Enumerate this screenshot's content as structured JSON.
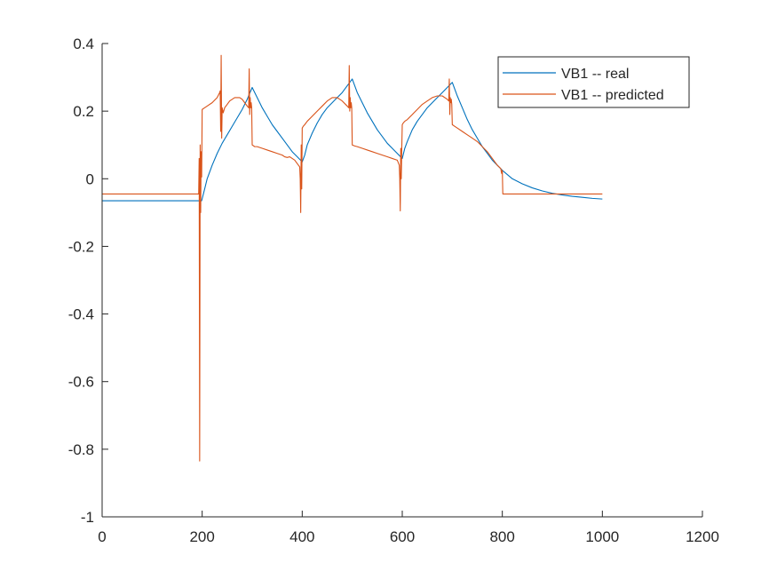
{
  "chart_data": {
    "type": "line",
    "title": "",
    "xlabel": "",
    "ylabel": "",
    "xlim": [
      0,
      1200
    ],
    "ylim": [
      -1,
      0.4
    ],
    "xticks": [
      0,
      200,
      400,
      600,
      800,
      1000,
      1200
    ],
    "yticks": [
      -1,
      -0.8,
      -0.6,
      -0.4,
      -0.2,
      0,
      0.2,
      0.4
    ],
    "xtick_labels": [
      "0",
      "200",
      "400",
      "600",
      "800",
      "1000",
      "1200"
    ],
    "ytick_labels": [
      "-1",
      "-0.8",
      "-0.6",
      "-0.4",
      "-0.2",
      "0",
      "0.2",
      "0.4"
    ],
    "grid": false,
    "legend_position": "top-right",
    "series": [
      {
        "name": "VB1 -- real",
        "color": "#0072BD",
        "x": [
          0,
          100,
          199,
          205,
          210,
          220,
          230,
          240,
          250,
          260,
          270,
          280,
          290,
          300,
          310,
          320,
          330,
          340,
          350,
          360,
          370,
          380,
          390,
          400,
          405,
          410,
          420,
          430,
          440,
          450,
          460,
          470,
          480,
          490,
          500,
          510,
          520,
          530,
          540,
          550,
          560,
          570,
          580,
          590,
          600,
          605,
          610,
          620,
          630,
          640,
          650,
          660,
          670,
          680,
          690,
          700,
          710,
          720,
          730,
          740,
          750,
          760,
          770,
          780,
          790,
          800,
          820,
          840,
          860,
          880,
          900,
          920,
          940,
          960,
          980,
          1000
        ],
        "y": [
          -0.065,
          -0.065,
          -0.065,
          -0.03,
          0.0,
          0.04,
          0.075,
          0.105,
          0.13,
          0.155,
          0.18,
          0.205,
          0.235,
          0.27,
          0.24,
          0.21,
          0.185,
          0.16,
          0.14,
          0.12,
          0.1,
          0.08,
          0.065,
          0.05,
          0.07,
          0.1,
          0.135,
          0.165,
          0.19,
          0.21,
          0.225,
          0.24,
          0.255,
          0.275,
          0.295,
          0.255,
          0.225,
          0.195,
          0.17,
          0.145,
          0.125,
          0.105,
          0.09,
          0.075,
          0.06,
          0.09,
          0.11,
          0.145,
          0.17,
          0.19,
          0.21,
          0.225,
          0.24,
          0.255,
          0.27,
          0.285,
          0.245,
          0.21,
          0.175,
          0.145,
          0.12,
          0.095,
          0.075,
          0.055,
          0.04,
          0.025,
          0.0,
          -0.015,
          -0.027,
          -0.036,
          -0.043,
          -0.048,
          -0.052,
          -0.055,
          -0.058,
          -0.06
        ]
      },
      {
        "name": "VB1 -- predicted",
        "color": "#D95319",
        "x": [
          0,
          100,
          193,
          194,
          195,
          196,
          197,
          198,
          199,
          200,
          205,
          210,
          220,
          230,
          235,
          236,
          237,
          238,
          239,
          240,
          242,
          245,
          250,
          255,
          260,
          265,
          270,
          275,
          280,
          285,
          290,
          293,
          294,
          295,
          296,
          297,
          298,
          299,
          300,
          305,
          310,
          320,
          330,
          340,
          350,
          360,
          365,
          370,
          375,
          380,
          385,
          390,
          395,
          396,
          397,
          398,
          399,
          400,
          402,
          405,
          410,
          420,
          430,
          440,
          450,
          460,
          470,
          480,
          490,
          493,
          494,
          495,
          496,
          497,
          498,
          499,
          500,
          505,
          510,
          520,
          530,
          540,
          550,
          560,
          570,
          580,
          590,
          594,
          595,
          596,
          597,
          598,
          599,
          600,
          602,
          605,
          610,
          620,
          630,
          640,
          650,
          660,
          670,
          680,
          690,
          693,
          694,
          695,
          696,
          697,
          698,
          699,
          700,
          705,
          710,
          720,
          730,
          740,
          750,
          760,
          770,
          780,
          790,
          797,
          798,
          799,
          800,
          801,
          805,
          820,
          850,
          900,
          950,
          1000
        ],
        "y": [
          -0.045,
          -0.045,
          -0.045,
          0.06,
          -0.835,
          0.1,
          -0.1,
          0.08,
          0.005,
          0.205,
          0.21,
          0.215,
          0.225,
          0.24,
          0.255,
          0.26,
          0.14,
          0.365,
          0.12,
          0.21,
          0.195,
          0.21,
          0.22,
          0.23,
          0.235,
          0.24,
          0.24,
          0.24,
          0.235,
          0.225,
          0.215,
          0.21,
          0.325,
          0.19,
          0.24,
          0.21,
          0.225,
          0.21,
          0.1,
          0.095,
          0.095,
          0.09,
          0.085,
          0.08,
          0.075,
          0.07,
          0.065,
          0.063,
          0.065,
          0.06,
          0.055,
          0.045,
          0.035,
          0.0,
          -0.1,
          0.1,
          -0.03,
          0.15,
          0.155,
          0.16,
          0.17,
          0.185,
          0.2,
          0.215,
          0.23,
          0.24,
          0.24,
          0.23,
          0.215,
          0.21,
          0.335,
          0.2,
          0.24,
          0.21,
          0.225,
          0.21,
          0.1,
          0.097,
          0.095,
          0.09,
          0.085,
          0.08,
          0.075,
          0.07,
          0.065,
          0.06,
          0.055,
          0.04,
          0.0,
          -0.095,
          0.09,
          0.0,
          0.09,
          0.16,
          0.165,
          0.17,
          0.175,
          0.19,
          0.205,
          0.22,
          0.23,
          0.24,
          0.245,
          0.245,
          0.235,
          0.23,
          0.295,
          0.19,
          0.24,
          0.225,
          0.235,
          0.22,
          0.16,
          0.155,
          0.15,
          0.14,
          0.13,
          0.12,
          0.11,
          0.095,
          0.08,
          0.06,
          0.04,
          0.03,
          0.02,
          0.015,
          0.025,
          -0.045,
          -0.045,
          -0.045,
          -0.045,
          -0.045,
          -0.045,
          -0.045
        ]
      }
    ]
  }
}
